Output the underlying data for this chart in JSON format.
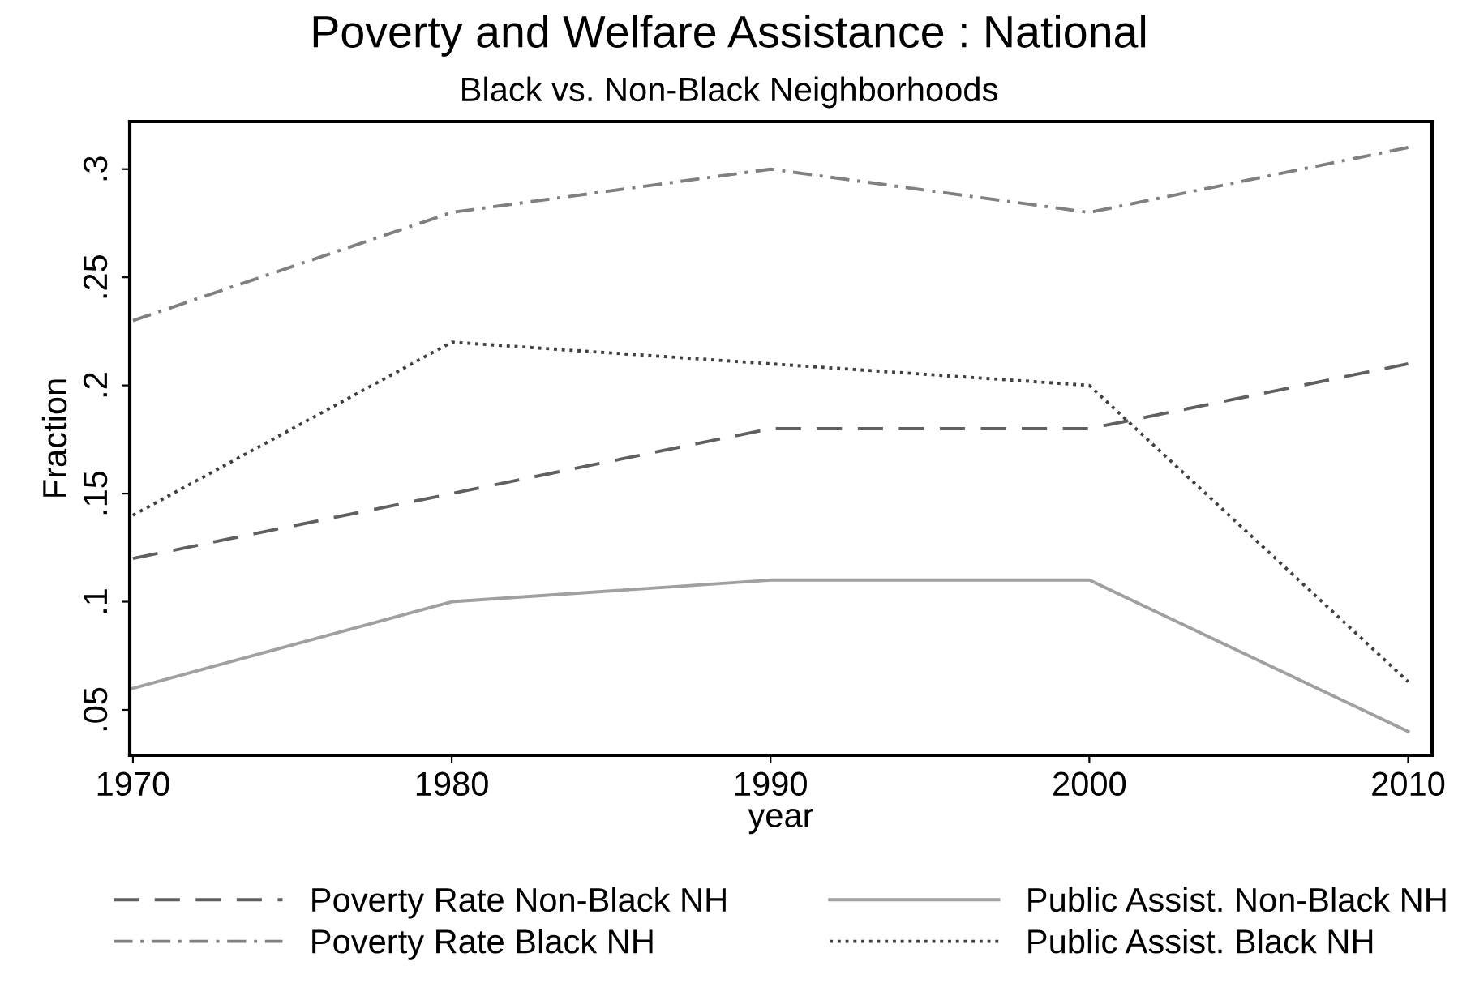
{
  "chart_data": {
    "type": "line",
    "title": "Poverty and Welfare Assistance : National",
    "subtitle": "Black vs. Non-Black Neighborhoods",
    "xlabel": "year",
    "ylabel": "Fraction",
    "x": [
      1970,
      1980,
      1990,
      2000,
      2010
    ],
    "series": [
      {
        "name": "Poverty Rate Non-Black NH",
        "color": "#606060",
        "line_style": "dashed",
        "values": [
          0.12,
          0.15,
          0.18,
          0.18,
          0.21
        ]
      },
      {
        "name": "Poverty Rate Black NH",
        "color": "#808080",
        "line_style": "dashdot",
        "values": [
          0.23,
          0.28,
          0.3,
          0.28,
          0.31
        ]
      },
      {
        "name": "Public Assist. Non-Black NH",
        "color": "#a0a0a0",
        "line_style": "solid",
        "values": [
          0.06,
          0.1,
          0.11,
          0.11,
          0.04
        ]
      },
      {
        "name": "Public Assist. Black NH",
        "color": "#404040",
        "line_style": "dotted",
        "values": [
          0.14,
          0.22,
          0.21,
          0.2,
          0.063
        ]
      }
    ],
    "xlim": [
      1969.9,
      2010.75
    ],
    "ylim": [
      0.029,
      0.322
    ],
    "xticks": [
      1970,
      1980,
      1990,
      2000,
      2010
    ],
    "yticks": [
      {
        "value": 0.05,
        "label": ".05"
      },
      {
        "value": 0.1,
        "label": ".1"
      },
      {
        "value": 0.15,
        "label": ".15"
      },
      {
        "value": 0.2,
        "label": ".2"
      },
      {
        "value": 0.25,
        "label": ".25"
      },
      {
        "value": 0.3,
        "label": ".3"
      }
    ],
    "grid": false,
    "legend": "bottom",
    "marker": "none"
  }
}
